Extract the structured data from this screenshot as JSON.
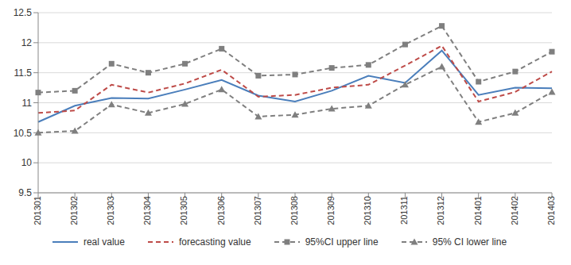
{
  "chart_data": {
    "type": "line",
    "categories": [
      "201301",
      "201302",
      "201303",
      "201304",
      "201305",
      "201306",
      "201307",
      "201308",
      "201309",
      "201310",
      "201311",
      "201312",
      "201401",
      "201402",
      "201403"
    ],
    "series": [
      {
        "name": "real value",
        "color": "#4a7ebb",
        "line_style": "solid",
        "marker": "none",
        "values": [
          10.68,
          10.95,
          11.08,
          11.07,
          11.22,
          11.38,
          11.12,
          11.02,
          11.2,
          11.45,
          11.33,
          11.87,
          11.13,
          11.25,
          11.24
        ]
      },
      {
        "name": "forecasting value",
        "color": "#be4b48",
        "line_style": "dashed",
        "marker": "none",
        "values": [
          10.83,
          10.87,
          11.3,
          11.17,
          11.32,
          11.55,
          11.1,
          11.13,
          11.25,
          11.3,
          11.62,
          11.95,
          11.02,
          11.18,
          11.52
        ]
      },
      {
        "name": "95%CI upper line",
        "color": "#7f7f7f",
        "line_style": "dashed",
        "marker": "square",
        "values": [
          11.17,
          11.2,
          11.65,
          11.5,
          11.65,
          11.9,
          11.45,
          11.47,
          11.58,
          11.63,
          11.97,
          12.28,
          11.35,
          11.52,
          11.85
        ]
      },
      {
        "name": "95% CI lower line",
        "color": "#7f7f7f",
        "line_style": "dashed",
        "marker": "triangle",
        "values": [
          10.5,
          10.53,
          10.97,
          10.83,
          10.98,
          11.22,
          10.77,
          10.8,
          10.9,
          10.95,
          11.3,
          11.6,
          10.68,
          10.83,
          11.18
        ]
      }
    ],
    "ylim": [
      9.5,
      12.5
    ],
    "yticks": [
      9.5,
      10,
      10.5,
      11,
      11.5,
      12,
      12.5
    ],
    "grid": true,
    "legend": "bottom"
  }
}
